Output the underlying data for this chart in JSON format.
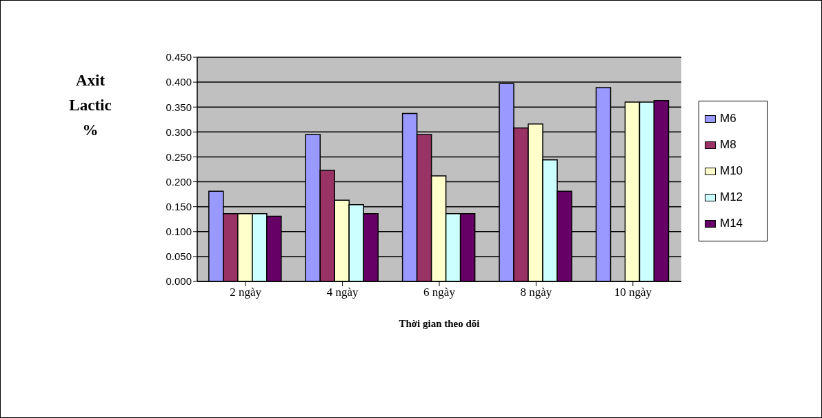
{
  "chart_data": {
    "type": "bar",
    "xlabel": "Thời gian theo dõi",
    "ylabel": "Axit Lactic %",
    "categories": [
      "2 ngày",
      "4 ngày",
      "6 ngày",
      "8 ngày",
      "10 ngày"
    ],
    "series": [
      {
        "name": "M6",
        "color": "#9999ff",
        "values": [
          0.181,
          0.295,
          0.337,
          0.397,
          0.389
        ]
      },
      {
        "name": "M8",
        "color": "#993366",
        "values": [
          0.136,
          0.223,
          0.295,
          0.308,
          null
        ]
      },
      {
        "name": "M10",
        "color": "#ffffcc",
        "values": [
          0.136,
          0.163,
          0.212,
          0.316,
          0.36
        ]
      },
      {
        "name": "M12",
        "color": "#ccffff",
        "values": [
          0.136,
          0.154,
          0.136,
          0.244,
          0.36
        ]
      },
      {
        "name": "M14",
        "color": "#660066",
        "values": [
          0.131,
          0.136,
          0.136,
          0.181,
          0.363
        ]
      }
    ],
    "ylim": [
      0,
      0.45
    ],
    "yticks": [
      {
        "value": 0,
        "label": "0.000"
      },
      {
        "value": 0.05,
        "label": "0.050"
      },
      {
        "value": 0.1,
        "label": "0.100"
      },
      {
        "value": 0.15,
        "label": "0.150"
      },
      {
        "value": 0.2,
        "label": "0.200"
      },
      {
        "value": 0.25,
        "label": "0.250"
      },
      {
        "value": 0.3,
        "label": "0.300"
      },
      {
        "value": 0.35,
        "label": "0.350"
      },
      {
        "value": 0.4,
        "label": "0.400"
      },
      {
        "value": 0.45,
        "label": "0.450"
      }
    ],
    "grid": "y",
    "legend": "right"
  }
}
